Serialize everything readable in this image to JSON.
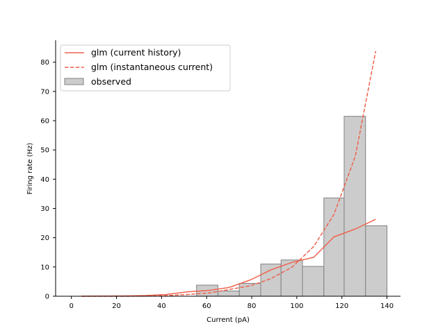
{
  "chart_data": {
    "type": "bar",
    "title": "",
    "xlabel": "Current (pA)",
    "ylabel": "Firing rate (Hz)",
    "xlim": [
      -7,
      146
    ],
    "ylim": [
      0,
      87.5
    ],
    "xticks": [
      0,
      20,
      40,
      60,
      80,
      100,
      120,
      140
    ],
    "yticks": [
      0,
      10,
      20,
      30,
      40,
      50,
      60,
      70,
      80
    ],
    "grid": false,
    "legend_position": "upper-left",
    "colors": {
      "glm": "#F0624D",
      "observed_fill": "#CCCCCC",
      "observed_edge": "#808080",
      "axis": "#000000"
    },
    "bars": {
      "name": "observed",
      "bin_edges": [
        55.5,
        65,
        74.5,
        84,
        93,
        102.5,
        112,
        121,
        130.5,
        140
      ],
      "values": [
        3.8,
        1.8,
        4.4,
        11.0,
        12.4,
        10.2,
        33.6,
        61.5,
        24.1
      ]
    },
    "series": [
      {
        "name": "glm (current history)",
        "style": "solid",
        "x": [
          4.5,
          14,
          23.5,
          33,
          42,
          51.5,
          61,
          70,
          79.5,
          88.5,
          98,
          107.5,
          116.5,
          126,
          135
        ],
        "values": [
          0.0,
          0.05,
          0.1,
          0.25,
          0.6,
          1.5,
          2.0,
          3.0,
          5.6,
          9.0,
          11.6,
          13.3,
          20.3,
          23.0,
          26.3
        ]
      },
      {
        "name": "glm (instantaneous current)",
        "style": "dashed",
        "x": [
          4.5,
          14,
          23.5,
          33,
          42,
          51.5,
          61,
          70,
          79.5,
          88.5,
          98,
          107.5,
          116.5,
          126,
          135
        ],
        "values": [
          0.0,
          0.0,
          0.0,
          0.05,
          0.2,
          0.6,
          1.1,
          2.3,
          3.6,
          6.0,
          10.0,
          17.0,
          28.0,
          48.0,
          83.8
        ]
      }
    ]
  }
}
